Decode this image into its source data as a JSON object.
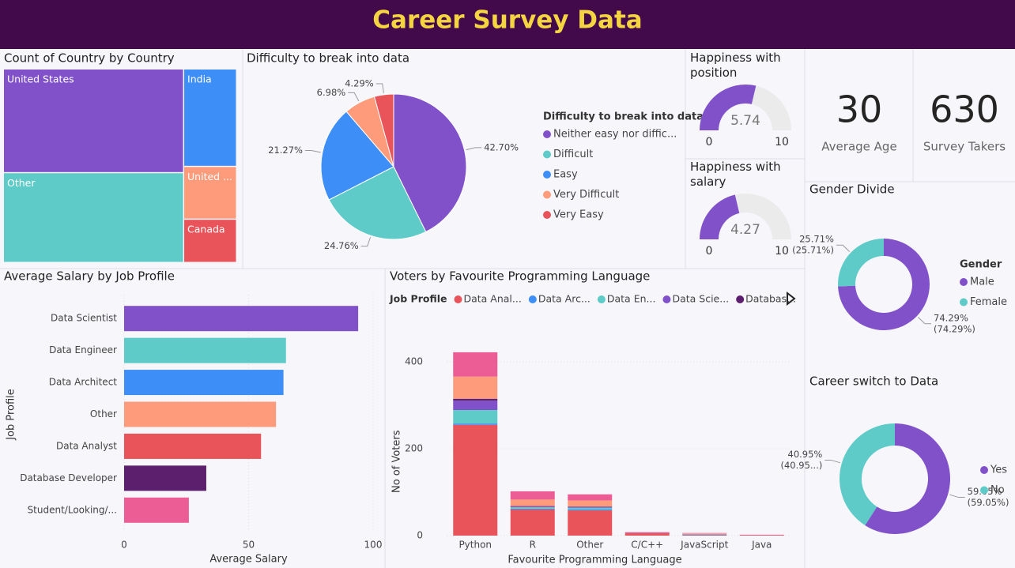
{
  "title": "Career Survey Data",
  "chart_data": [
    {
      "type": "treemap",
      "title": "Count of Country by Country",
      "categories": [
        "United States",
        "India",
        "Other",
        "United ...",
        "Canada"
      ],
      "values": [
        261,
        72,
        226,
        39,
        32
      ],
      "colors": [
        "#8151c9",
        "#3e8ef7",
        "#5ecbc8",
        "#fe9b7a",
        "#e8545a"
      ]
    },
    {
      "type": "pie",
      "title": "Difficulty to break into data",
      "legend_title": "Difficulty to break into data",
      "categories": [
        "Neither easy nor diffic...",
        "Difficult",
        "Easy",
        "Very Difficult",
        "Very Easy"
      ],
      "values": [
        42.7,
        24.76,
        21.27,
        6.98,
        4.29
      ],
      "value_labels": [
        "42.70%",
        "24.76%",
        "21.27%",
        "6.98%",
        "4.29%"
      ],
      "colors": [
        "#8151c9",
        "#5ecbc8",
        "#3e8ef7",
        "#fe9b7a",
        "#e8545a"
      ],
      "legend": "right"
    },
    {
      "type": "gauge",
      "title": "Happiness with position",
      "value": 5.74,
      "ylim": [
        0,
        10
      ],
      "yticks": [
        0,
        10
      ],
      "color": "#8151c9"
    },
    {
      "type": "gauge",
      "title": "Happiness with salary",
      "value": 4.27,
      "ylim": [
        0,
        10
      ],
      "yticks": [
        0,
        10
      ],
      "color": "#8151c9"
    },
    {
      "type": "card",
      "value": 30,
      "label": "Average Age"
    },
    {
      "type": "card",
      "value": 630,
      "label": "Survey Takers"
    },
    {
      "type": "donut",
      "title": "Gender Divide",
      "legend_title": "Gender",
      "categories": [
        "Male",
        "Female"
      ],
      "values": [
        74.29,
        25.71
      ],
      "value_labels": [
        [
          "74.29%",
          "(74.29%)"
        ],
        [
          "25.71%",
          "(25.71%)"
        ]
      ],
      "colors": [
        "#8151c9",
        "#5ecbc8"
      ],
      "legend": "right"
    },
    {
      "type": "donut",
      "title": "Career switch to Data",
      "categories": [
        "Yes",
        "No"
      ],
      "values": [
        59.05,
        40.95
      ],
      "value_labels": [
        [
          "59.05%",
          "(59.05%)"
        ],
        [
          "40.95%",
          "(40.95...)"
        ]
      ],
      "colors": [
        "#8151c9",
        "#5ecbc8"
      ],
      "legend": "right"
    },
    {
      "type": "hbar",
      "title": "Average Salary by Job Profile",
      "categories": [
        "Data Scientist",
        "Data Engineer",
        "Data Architect",
        "Other",
        "Data Analyst",
        "Database Developer",
        "Student/Looking/..."
      ],
      "values": [
        94,
        65,
        64,
        61,
        55,
        33,
        26
      ],
      "colors": [
        "#8151c9",
        "#5ecbc8",
        "#3e8ef7",
        "#fe9b7a",
        "#e8545a",
        "#5c1f6e",
        "#ec5d96"
      ],
      "xlim": [
        0,
        100
      ],
      "xticks": [
        0,
        50,
        100
      ],
      "xlabel": "Average Salary",
      "ylabel": "Job Profile",
      "grid": true
    },
    {
      "type": "stacked_bar",
      "title": "Voters by Favourite Programming Language",
      "legend_title": "Job Profile",
      "categories": [
        "Python",
        "R",
        "Other",
        "C/C++",
        "JavaScript",
        "Java"
      ],
      "series": [
        {
          "name": "Data Anal...",
          "color": "#e8545a",
          "values": [
            255,
            60,
            58,
            6,
            2,
            1
          ]
        },
        {
          "name": "Data Arc...",
          "color": "#3e8ef7",
          "values": [
            3,
            2,
            2,
            0,
            1,
            0
          ]
        },
        {
          "name": "Data En...",
          "color": "#5ecbc8",
          "values": [
            31,
            3,
            4,
            0,
            1,
            0
          ]
        },
        {
          "name": "Data Scie...",
          "color": "#8151c9",
          "values": [
            22,
            2,
            2,
            1,
            0,
            0
          ]
        },
        {
          "name": "Databas...",
          "color": "#5c1f6e",
          "values": [
            4,
            1,
            1,
            0,
            0,
            0
          ]
        },
        {
          "name": null,
          "color": "#fe9b7a",
          "values": [
            51,
            15,
            14,
            0,
            1,
            0
          ]
        },
        {
          "name": null,
          "color": "#ec5d96",
          "values": [
            56,
            19,
            14,
            1,
            1,
            1
          ]
        }
      ],
      "ylim": [
        0,
        450
      ],
      "yticks": [
        0,
        200,
        400
      ],
      "xlabel": "Favourite Programming Language",
      "ylabel": "No of Voters",
      "grid": true
    }
  ]
}
